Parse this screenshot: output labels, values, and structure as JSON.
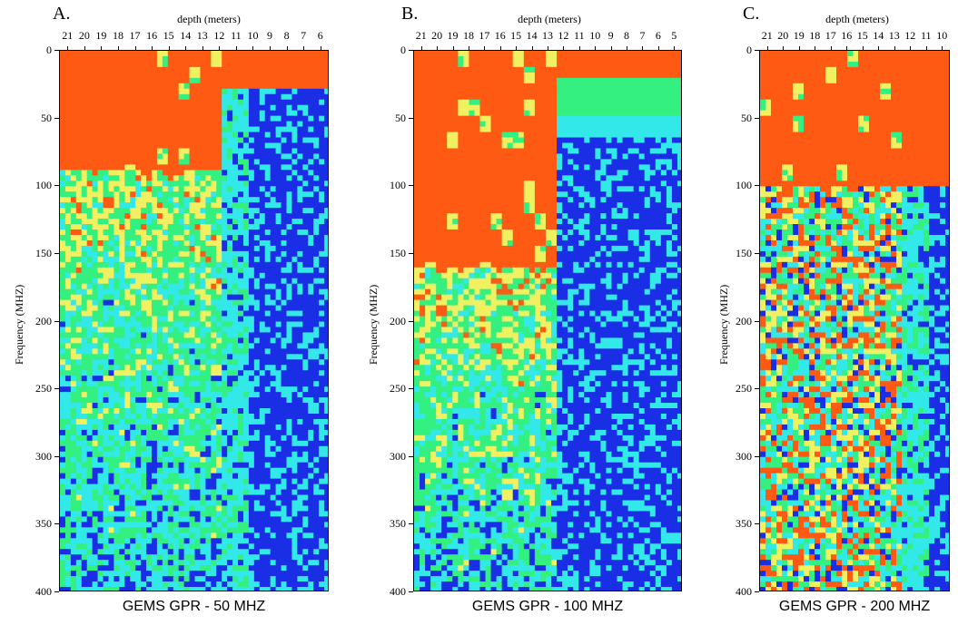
{
  "chart_data": [
    {
      "type": "heatmap",
      "panel_label": "A.",
      "title": "GEMS GPR - 50 MHZ",
      "xlabel": "depth (meters)",
      "ylabel": "Frequency (MHZ)",
      "x_ticks": [
        "21",
        "20",
        "19",
        "18",
        "17",
        "16",
        "15",
        "14",
        "13",
        "12",
        "11",
        "10",
        "9",
        "8",
        "7",
        "6"
      ],
      "y_ticks": [
        "0",
        "50",
        "100",
        "150",
        "200",
        "250",
        "300",
        "350",
        "400"
      ],
      "ylim": [
        0,
        400
      ],
      "x_axis_position": "top",
      "colormap": [
        "#1a2ee6",
        "#33e8e8",
        "#33f080",
        "#f0f060",
        "#ff5a14"
      ],
      "transition_depth": 12,
      "red_band_limit": 90
    },
    {
      "type": "heatmap",
      "panel_label": "B.",
      "title": "GEMS GPR - 100 MHZ",
      "xlabel": "depth (meters)",
      "ylabel": "Frequency (MHZ)",
      "x_ticks": [
        "21",
        "20",
        "19",
        "18",
        "17",
        "16",
        "15",
        "14",
        "13",
        "12",
        "11",
        "10",
        "9",
        "8",
        "7",
        "6",
        "5"
      ],
      "y_ticks": [
        "0",
        "50",
        "100",
        "150",
        "200",
        "250",
        "300",
        "350",
        "400"
      ],
      "ylim": [
        0,
        400
      ],
      "x_axis_position": "top",
      "colormap": [
        "#1a2ee6",
        "#33e8e8",
        "#33f080",
        "#f0f060",
        "#ff5a14"
      ],
      "transition_depth": 12.5,
      "red_band_limit": 160
    },
    {
      "type": "heatmap",
      "panel_label": "C.",
      "title": "GEMS GPR - 200 MHZ",
      "xlabel": "depth (meters)",
      "ylabel": "Frequency (MHZ)",
      "x_ticks": [
        "21",
        "20",
        "19",
        "18",
        "17",
        "16",
        "15",
        "14",
        "13",
        "12",
        "11",
        "10"
      ],
      "y_ticks": [
        "0",
        "50",
        "100",
        "150",
        "200",
        "250",
        "300",
        "350",
        "400"
      ],
      "ylim": [
        0,
        400
      ],
      "x_axis_position": "top",
      "colormap": [
        "#1a2ee6",
        "#33e8e8",
        "#33f080",
        "#f0f060",
        "#ff5a14"
      ],
      "transition_depth": 12.5,
      "red_band_limit": 100
    }
  ]
}
